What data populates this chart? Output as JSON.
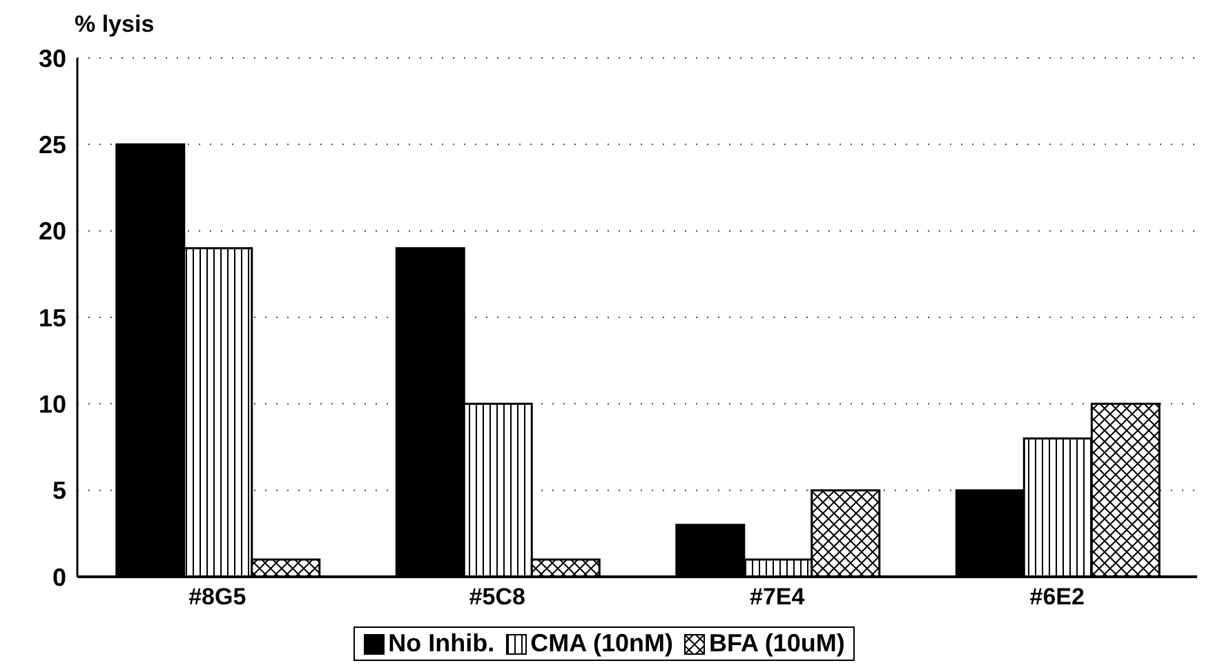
{
  "chart_data": {
    "type": "bar",
    "ylabel": "% lysis",
    "categories": [
      "#8G5",
      "#5C8",
      "#7E4",
      "#6E2"
    ],
    "series": [
      {
        "name": "No Inhib.",
        "color": "#000000",
        "values": [
          25,
          19,
          3,
          5
        ]
      },
      {
        "name": "CMA (10nM)",
        "color": "#000000",
        "values": [
          19,
          10,
          1,
          8
        ]
      },
      {
        "name": "BFA (10uM)",
        "color": "#000000",
        "values": [
          1,
          1,
          5,
          10
        ]
      }
    ],
    "ylim": [
      0,
      30
    ],
    "yticks": [
      0,
      5,
      10,
      15,
      20,
      25,
      30
    ],
    "grid": "y",
    "legend": "bottom"
  }
}
